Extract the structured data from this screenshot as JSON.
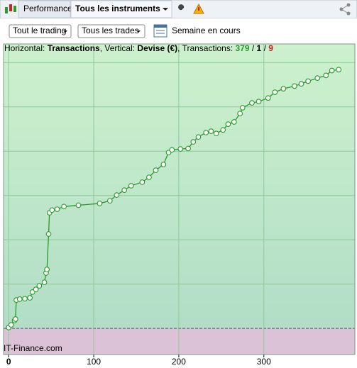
{
  "toolbar": {
    "tabs": [
      "Performance",
      "Tous les instruments"
    ]
  },
  "filters": {
    "dropdowns": [
      "Tout le trading",
      "Tous les trades"
    ],
    "period": "Semaine en cours"
  },
  "chart_data": {
    "type": "line",
    "header": {
      "parts": [
        "Horizontal: ",
        "Transactions",
        ", Vertical: ",
        "Devise (€)",
        ", Transactions: "
      ],
      "counts": [
        379,
        1,
        9
      ],
      "separator": " / "
    },
    "footer": "IT-Finance.com",
    "x": [
      0,
      3,
      7,
      8,
      9,
      13,
      19,
      25,
      28,
      32,
      36,
      42,
      44,
      45,
      47,
      48,
      51,
      57,
      65,
      82,
      107,
      119,
      127,
      136,
      144,
      157,
      165,
      173,
      182,
      188,
      192,
      202,
      211,
      217,
      223,
      232,
      238,
      244,
      252,
      258,
      265,
      272,
      275,
      286,
      294,
      305,
      313,
      323,
      336,
      344,
      352,
      363,
      373,
      380,
      388
    ],
    "series": [
      {
        "color": "#2a9a2a",
        "values": [
          2,
          8,
          18,
          21,
          64,
          66,
          67,
          69,
          82,
          88,
          96,
          104,
          125,
          133,
          213,
          261,
          267,
          269,
          275,
          278,
          282,
          288,
          301,
          312,
          322,
          330,
          341,
          357,
          370,
          397,
          403,
          405,
          406,
          421,
          432,
          442,
          445,
          440,
          448,
          461,
          466,
          485,
          498,
          509,
          512,
          520,
          533,
          541,
          547,
          552,
          558,
          565,
          571,
          582,
          584
        ]
      }
    ],
    "xlim": [
      -6,
      407
    ],
    "ylim": [
      -59,
      642
    ],
    "xticks": [
      0,
      100,
      200,
      300
    ],
    "yticks": [
      0,
      100,
      200,
      300,
      400,
      500,
      600
    ],
    "grid": true
  }
}
